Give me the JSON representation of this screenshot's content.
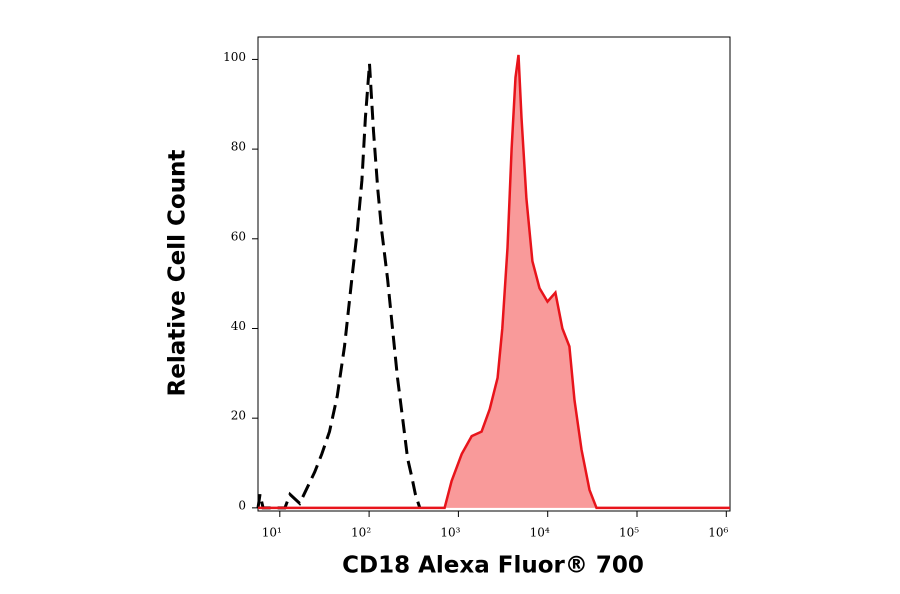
{
  "chart_data": {
    "type": "histogram-overlay",
    "xlabel": "CD18 Alexa Fluor® 700",
    "ylabel": "Relative Cell Count",
    "xscale": "log",
    "xlim": [
      5.7,
      1100000
    ],
    "ylim": [
      -0.7,
      105
    ],
    "xticks": [
      {
        "value": 10,
        "label": "10¹"
      },
      {
        "value": 100,
        "label": "10²"
      },
      {
        "value": 1000,
        "label": "10³"
      },
      {
        "value": 10000,
        "label": "10⁴"
      },
      {
        "value": 100000,
        "label": "10⁵"
      },
      {
        "value": 1000000,
        "label": "10⁶"
      }
    ],
    "yticks": [
      0,
      20,
      40,
      60,
      80,
      100
    ],
    "series": [
      {
        "color": "#000000",
        "style": "dashed",
        "filled": false,
        "x": [
          5.7,
          6.0,
          6.5,
          11.4,
          13,
          16.7,
          24.6,
          29.5,
          36,
          44,
          53,
          64,
          74,
          83,
          91,
          101,
          112,
          125,
          138,
          161,
          183,
          208,
          237,
          270,
          300,
          330,
          370
        ],
        "values": [
          0,
          3,
          0,
          0,
          3,
          1,
          8,
          12,
          17,
          25,
          36,
          51,
          62,
          73,
          87,
          99,
          84,
          71,
          62,
          51,
          40,
          29,
          20,
          11,
          7,
          3,
          0
        ]
      },
      {
        "color": "#e8141b",
        "style": "solid",
        "filled": true,
        "fill": "#f99a9a",
        "x": [
          5.7,
          701,
          840,
          1090,
          1410,
          1820,
          2240,
          2750,
          3100,
          3550,
          3940,
          4360,
          4710,
          5090,
          5770,
          6740,
          8090,
          9950,
          12200,
          14600,
          17500,
          19950,
          23900,
          29400,
          35200,
          1100000
        ],
        "values": [
          0,
          0,
          6,
          12,
          16,
          17,
          22,
          29,
          40,
          58,
          80,
          96,
          101,
          87,
          69,
          55,
          49,
          46,
          48,
          40,
          36,
          24,
          13,
          4,
          0,
          0
        ]
      }
    ]
  }
}
